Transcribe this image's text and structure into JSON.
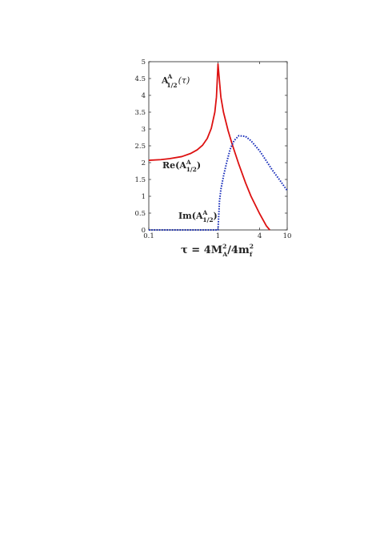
{
  "chart_data": {
    "type": "line",
    "x_scale": "log",
    "xlim": [
      0.1,
      10
    ],
    "ylim": [
      0,
      5
    ],
    "x_ticks": [
      0.1,
      1,
      4,
      10
    ],
    "x_tick_labels": [
      "0.1",
      "1",
      "4",
      "10"
    ],
    "y_ticks": [
      0,
      0.5,
      1,
      1.5,
      2,
      2.5,
      3,
      3.5,
      4,
      4.5,
      5
    ],
    "y_tick_labels": [
      "0",
      "0.5",
      "1",
      "1.5",
      "2",
      "2.5",
      "3",
      "3.5",
      "4",
      "4.5",
      "5"
    ],
    "grid": false,
    "title_text": {
      "main": "A",
      "sup": "A",
      "sub": "1/2",
      "arg": "(τ)"
    },
    "xlabel_text": {
      "prefix": "τ = 4M",
      "sup1": "2",
      "sub1": "A",
      "mid": "/4m",
      "sup2": "2",
      "sub2": "f"
    },
    "annotation_re": {
      "prefix": "Re(A",
      "sup": "A",
      "sub": "1/2",
      "suffix": ")"
    },
    "annotation_im": {
      "prefix": "Im(A",
      "sup": "A",
      "sub": "1/2",
      "suffix": ")"
    },
    "series": [
      {
        "key": "re",
        "color": "#dd1111",
        "style": "solid",
        "x": [
          0.1,
          0.15,
          0.2,
          0.3,
          0.4,
          0.5,
          0.6,
          0.7,
          0.8,
          0.9,
          0.95,
          1.0,
          1.1,
          1.2,
          1.4,
          1.6,
          2.0,
          2.5,
          3.0,
          4.0,
          5.0,
          5.6
        ],
        "y": [
          2.07,
          2.09,
          2.12,
          2.18,
          2.27,
          2.38,
          2.52,
          2.72,
          3.02,
          3.5,
          3.95,
          4.93,
          3.95,
          3.5,
          2.95,
          2.55,
          1.95,
          1.4,
          1.0,
          0.48,
          0.12,
          0.0
        ]
      },
      {
        "key": "im",
        "color": "#1a2fbb",
        "style": "dotted",
        "x": [
          0.1,
          0.5,
          0.99,
          1.0,
          1.05,
          1.1,
          1.2,
          1.35,
          1.5,
          1.7,
          2.0,
          2.5,
          3.0,
          4.0,
          5.0,
          6.0,
          8.0,
          10.0
        ],
        "y": [
          0.0,
          0.0,
          0.0,
          0.0,
          0.85,
          1.2,
          1.6,
          2.05,
          2.4,
          2.65,
          2.8,
          2.78,
          2.65,
          2.35,
          2.05,
          1.8,
          1.45,
          1.17
        ]
      }
    ]
  }
}
